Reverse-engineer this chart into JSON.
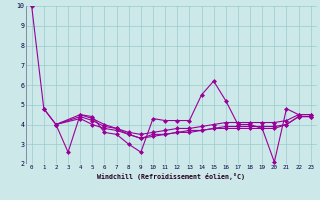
{
  "xlabel": "Windchill (Refroidissement éolien,°C)",
  "bg_color": "#cce8e8",
  "grid_color": "#99cccc",
  "line_color": "#990099",
  "xlim": [
    -0.5,
    23.5
  ],
  "ylim": [
    2,
    10
  ],
  "yticks": [
    2,
    3,
    4,
    5,
    6,
    7,
    8,
    9,
    10
  ],
  "xticks": [
    0,
    1,
    2,
    3,
    4,
    5,
    6,
    7,
    8,
    9,
    10,
    11,
    12,
    13,
    14,
    15,
    16,
    17,
    18,
    19,
    20,
    21,
    22,
    23
  ],
  "line1_x": [
    0,
    1,
    2,
    3,
    4,
    5,
    6,
    7,
    8,
    9,
    10,
    11,
    12,
    13,
    14,
    15,
    16,
    17,
    18,
    19,
    20,
    21,
    22,
    23
  ],
  "line1_y": [
    10.0,
    4.8,
    4.0,
    2.6,
    4.5,
    4.4,
    3.6,
    3.5,
    3.0,
    2.6,
    4.3,
    4.2,
    4.2,
    4.2,
    5.5,
    6.2,
    5.2,
    4.0,
    4.0,
    3.8,
    2.1,
    4.8,
    4.5,
    4.5
  ],
  "line2_x": [
    1,
    2,
    4,
    5,
    6,
    7,
    8,
    9,
    10,
    11,
    12,
    13,
    14,
    15,
    16,
    17,
    18,
    19,
    20,
    21,
    22,
    23
  ],
  "line2_y": [
    4.8,
    4.0,
    4.5,
    4.3,
    4.0,
    3.8,
    3.5,
    3.3,
    3.5,
    3.5,
    3.6,
    3.6,
    3.7,
    3.8,
    3.8,
    3.8,
    3.8,
    3.8,
    3.8,
    4.0,
    4.4,
    4.4
  ],
  "line3_x": [
    2,
    4,
    5,
    6,
    7,
    8,
    9,
    10,
    11,
    12,
    13,
    14,
    15,
    16,
    17,
    18,
    19,
    20,
    21,
    22,
    23
  ],
  "line3_y": [
    4.0,
    4.4,
    4.2,
    3.9,
    3.8,
    3.6,
    3.5,
    3.6,
    3.7,
    3.8,
    3.8,
    3.9,
    4.0,
    4.1,
    4.1,
    4.1,
    4.1,
    4.1,
    4.2,
    4.5,
    4.5
  ],
  "line4_x": [
    2,
    4,
    5,
    6,
    7,
    8,
    9,
    10,
    11,
    12,
    13,
    14,
    15,
    16,
    17,
    18,
    19,
    20,
    21,
    22,
    23
  ],
  "line4_y": [
    4.0,
    4.3,
    4.0,
    3.8,
    3.7,
    3.5,
    3.3,
    3.4,
    3.5,
    3.6,
    3.7,
    3.7,
    3.8,
    3.9,
    3.9,
    3.9,
    3.9,
    3.9,
    4.0,
    4.4,
    4.4
  ]
}
